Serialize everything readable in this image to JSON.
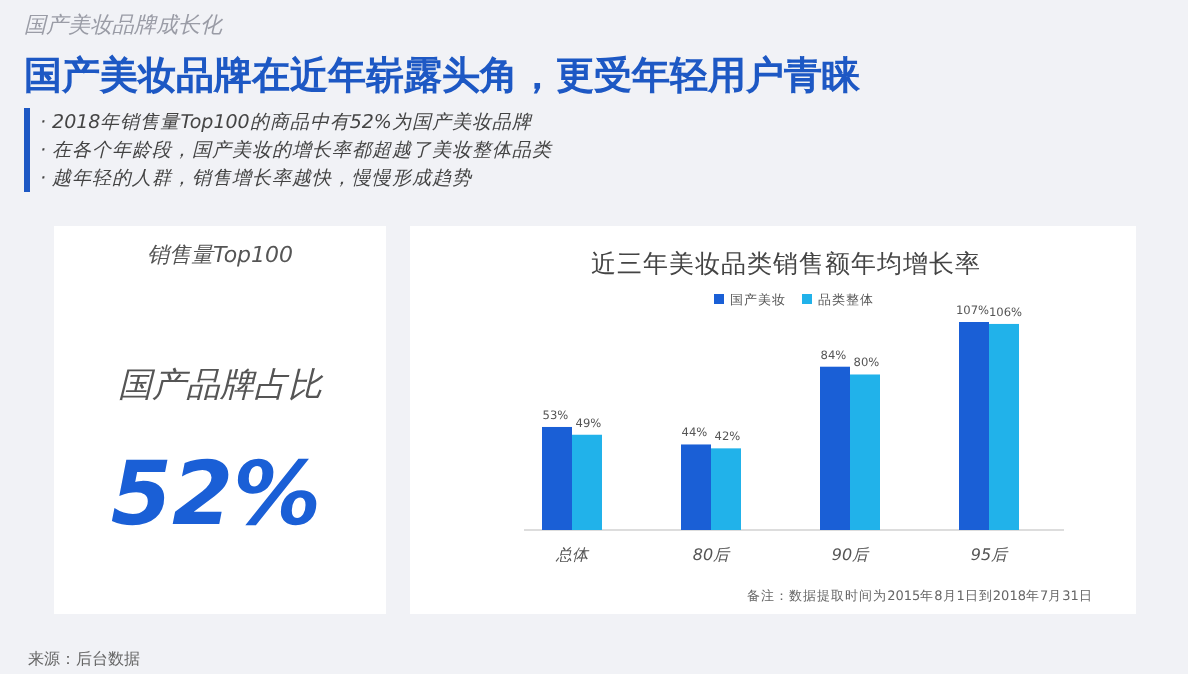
{
  "chart_data": [
    {
      "type": "other",
      "subtitle": "国产美妆品牌成长化",
      "title": "国产美妆品牌在近年崭露头角，更受年轻用户青睐",
      "annotations": [
        "· 2018年销售量Top100的商品中有52%为国产美妆品牌",
        "· 在各个年龄段，国产美妆的增长率都超越了美妆整体品类",
        "· 越年轻的人群，销售增长率越快，慢慢形成趋势",
        "销售量Top100",
        "国产品牌占比",
        "52%",
        "来源：后台数据"
      ]
    },
    {
      "type": "bar",
      "title": "近三年美妆品类销售额年均增长率",
      "categories": [
        "总体",
        "80后",
        "90后",
        "95后"
      ],
      "series": [
        {
          "name": "国产美妆",
          "color": "#1a5fd6",
          "values": [
            53,
            44,
            84,
            107
          ],
          "value_labels": [
            "53%",
            "44%",
            "84%",
            "107%"
          ]
        },
        {
          "name": "品类整体",
          "color": "#21b2ea",
          "values": [
            49,
            42,
            80,
            106
          ],
          "value_labels": [
            "49%",
            "42%",
            "80%",
            "106%"
          ]
        }
      ],
      "legend": "top",
      "annotations": [
        "备注：数据提取时间为2015年8月1日到2018年7月31日"
      ]
    }
  ]
}
